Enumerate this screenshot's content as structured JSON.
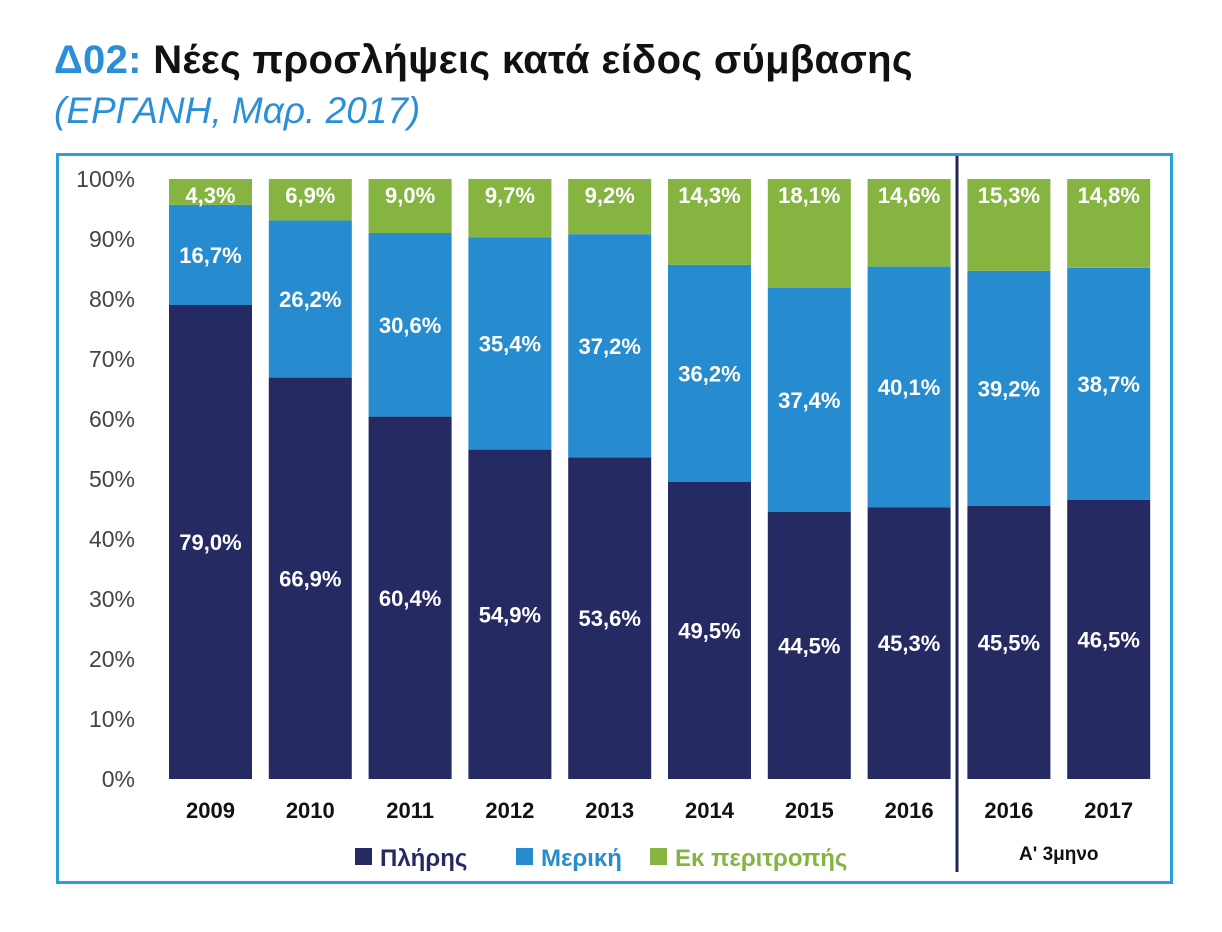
{
  "header": {
    "code": "Δ02:",
    "title": "Νέες προσλήψεις κατά είδος σύμβασης",
    "subtitle": "(ΕΡΓΑΝΗ, Μαρ. 2017)"
  },
  "chart_data": {
    "type": "bar",
    "stacked": true,
    "categories": [
      "2009",
      "2010",
      "2011",
      "2012",
      "2013",
      "2014",
      "2015",
      "2016",
      "2016",
      "2017"
    ],
    "series": [
      {
        "name": "Πλήρης",
        "color": "#262a63",
        "values": [
          79.0,
          66.9,
          60.4,
          54.9,
          53.6,
          49.5,
          44.5,
          45.3,
          45.5,
          46.5
        ],
        "labels": [
          "79,0%",
          "66,9%",
          "60,4%",
          "54,9%",
          "53,6%",
          "49,5%",
          "44,5%",
          "45,3%",
          "45,5%",
          "46,5%"
        ]
      },
      {
        "name": "Μερική",
        "color": "#278ccf",
        "values": [
          16.7,
          26.2,
          30.6,
          35.4,
          37.2,
          36.2,
          37.4,
          40.1,
          39.2,
          38.7
        ],
        "labels": [
          "16,7%",
          "26,2%",
          "30,6%",
          "35,4%",
          "37,2%",
          "36,2%",
          "37,4%",
          "40,1%",
          "39,2%",
          "38,7%"
        ]
      },
      {
        "name": "Εκ περιτροπής",
        "color": "#86b440",
        "values": [
          4.3,
          6.9,
          9.0,
          9.7,
          9.2,
          14.3,
          18.1,
          14.6,
          15.3,
          14.8
        ],
        "labels": [
          "4,3%",
          "6,9%",
          "9,0%",
          "9,7%",
          "9,2%",
          "14,3%",
          "18,1%",
          "14,6%",
          "15,3%",
          "14,8%"
        ]
      }
    ],
    "ylim": [
      0,
      100
    ],
    "yticks": [
      "0%",
      "10%",
      "20%",
      "30%",
      "40%",
      "50%",
      "60%",
      "70%",
      "80%",
      "90%",
      "100%"
    ],
    "group_annotation": "Α' 3μηνο",
    "legend_position": "bottom",
    "grid": false
  }
}
